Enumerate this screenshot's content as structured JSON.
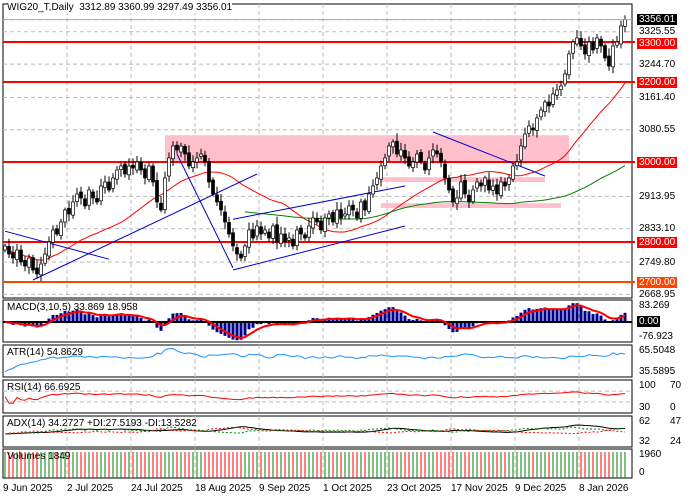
{
  "header": {
    "symbol_title": "WIG20_T,Daily",
    "ohlc": "3312.89 3360.99 3297.49 3356.01"
  },
  "colors": {
    "level_line": "#ff0000",
    "level_2700": "#ff4500",
    "zone": "#ffc0cb",
    "trendline": "#0000cc",
    "ma_fast": "#ff0000",
    "ma_slow": "#008000",
    "macd_hist": "#00008b",
    "atr": "#1e90ff",
    "rsi": "#ff0000",
    "vol_up": "#008000",
    "vol_down": "#ff0000"
  },
  "chart_data": {
    "type": "candlestick",
    "title": "WIG20_T,Daily",
    "x_tick_labels": [
      "9 Jun 2025",
      "2 Jul 2025",
      "24 Jul 2025",
      "18 Aug 2025",
      "9 Sep 2025",
      "1 Oct 2025",
      "23 Oct 2025",
      "17 Nov 2025",
      "9 Dec 2025",
      "8 Jan 2026"
    ],
    "x_tick_bar_index": [
      0,
      16,
      32,
      48,
      64,
      80,
      96,
      112,
      128,
      144
    ],
    "y_tick_labels": [
      "3356.01",
      "3325.55",
      "3300.00",
      "3244.70",
      "3200.00",
      "3161.40",
      "3080.55",
      "3000.00",
      "2913.95",
      "2833.10",
      "2800.00",
      "2749.80",
      "2700.00",
      "2668.95"
    ],
    "ylim": [
      2668.95,
      3356.01
    ],
    "last_price": 3356.01,
    "grid": true,
    "close": [
      2790,
      2770,
      2760,
      2780,
      2750,
      2740,
      2760,
      2730,
      2720,
      2745,
      2770,
      2800,
      2830,
      2820,
      2850,
      2880,
      2870,
      2900,
      2920,
      2910,
      2890,
      2930,
      2910,
      2900,
      2940,
      2950,
      2930,
      2960,
      2980,
      2990,
      2970,
      2990,
      2985,
      3000,
      2980,
      2960,
      2990,
      2950,
      2900,
      2880,
      2960,
      3010,
      3040,
      3030,
      3040,
      3020,
      2990,
      3000,
      3010,
      3020,
      3000,
      2950,
      2920,
      2900,
      2880,
      2850,
      2820,
      2790,
      2770,
      2760,
      2790,
      2830,
      2810,
      2840,
      2820,
      2830,
      2810,
      2840,
      2800,
      2820,
      2800,
      2810,
      2790,
      2830,
      2820,
      2810,
      2840,
      2860,
      2850,
      2830,
      2860,
      2870,
      2850,
      2880,
      2860,
      2870,
      2890,
      2880,
      2860,
      2900,
      2880,
      2920,
      2940,
      2960,
      2990,
      3010,
      3040,
      3050,
      3020,
      3030,
      3010,
      2990,
      3000,
      3020,
      3000,
      2980,
      3010,
      3030,
      3020,
      3000,
      2960,
      2930,
      2900,
      2910,
      2950,
      2920,
      2900,
      2930,
      2950,
      2940,
      2960,
      2930,
      2940,
      2920,
      2950,
      2940,
      2960,
      2990,
      3000,
      3040,
      3070,
      3090,
      3080,
      3110,
      3130,
      3150,
      3140,
      3170,
      3180,
      3190,
      3220,
      3270,
      3300,
      3310,
      3290,
      3270,
      3300,
      3280,
      3310,
      3290,
      3260,
      3240,
      3290,
      3300,
      3340,
      3356.01
    ],
    "levels": [
      {
        "price": 3300,
        "label": "3300.00"
      },
      {
        "price": 3200,
        "label": "3200.00"
      },
      {
        "price": 3000,
        "label": "3000.00"
      },
      {
        "price": 2800,
        "label": "2800.00"
      },
      {
        "price": 2700,
        "label": "2700.00"
      }
    ],
    "zones": [
      {
        "from_bar": 40,
        "to_bar": 141,
        "low": 3000,
        "high": 3067
      },
      {
        "from_bar": 94,
        "to_bar": 135,
        "low": 2950,
        "high": 2962
      },
      {
        "from_bar": 94,
        "to_bar": 139,
        "low": 2885,
        "high": 2897
      }
    ],
    "trendlines": [
      {
        "bar1": 0,
        "p1": 2827,
        "bar2": 26,
        "p2": 2757
      },
      {
        "bar1": 7,
        "p1": 2705,
        "bar2": 63,
        "p2": 2970
      },
      {
        "bar1": 57,
        "p1": 2730,
        "bar2": 100,
        "p2": 2840
      },
      {
        "bar1": 57,
        "p1": 2857,
        "bar2": 100,
        "p2": 2940
      },
      {
        "bar1": 107,
        "p1": 3075,
        "bar2": 135,
        "p2": 2965
      },
      {
        "bar1": 43,
        "p1": 3020,
        "bar2": 57,
        "p2": 2735
      }
    ],
    "panels": [
      {
        "label": "MACD(3,10,5) 33.869 18.958",
        "ticks": [
          "83.269",
          "0.00",
          "-76.923"
        ]
      },
      {
        "label": "ATR(14) 54.8629",
        "ticks": [
          "65.5048",
          "35.5895"
        ]
      },
      {
        "label": "RSI(14) 66.6925",
        "ticks": [
          "100",
          "70",
          "30",
          "0"
        ]
      },
      {
        "label": "ADX(14) 34.2727 +DI:27.5193 -DI:13.5282",
        "ticks": [
          "62",
          "47",
          "32",
          "24"
        ]
      },
      {
        "label": "Volumes 1849",
        "ticks": [
          "1960",
          "0"
        ]
      }
    ]
  }
}
